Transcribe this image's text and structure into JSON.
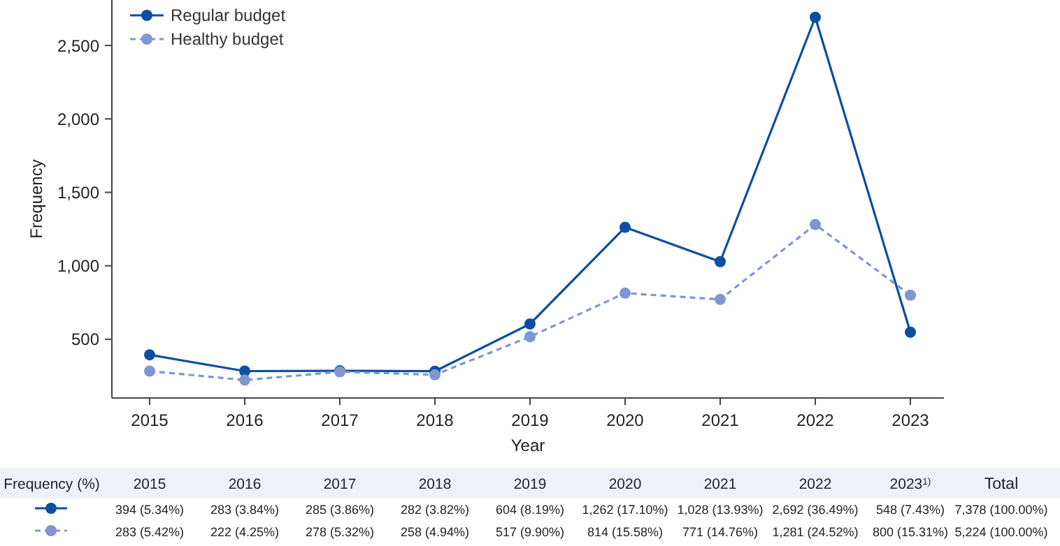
{
  "chart_data": {
    "type": "line",
    "xlabel": "Year",
    "ylabel": "Frequency",
    "categories": [
      "2015",
      "2016",
      "2017",
      "2018",
      "2019",
      "2020",
      "2021",
      "2022",
      "2023"
    ],
    "ylim": [
      100,
      2800
    ],
    "yticks": [
      {
        "value": 500,
        "label": "500"
      },
      {
        "value": 1000,
        "label": "1,000"
      },
      {
        "value": 1500,
        "label": "1,500"
      },
      {
        "value": 2000,
        "label": "2,000"
      },
      {
        "value": 2500,
        "label": "2,500"
      }
    ],
    "grid": false,
    "legend": "top left",
    "marker": "circle",
    "series": [
      {
        "name": "Regular budget",
        "color": "#0b4ea2",
        "line_style": "solid",
        "values": [
          394,
          283,
          285,
          282,
          604,
          1262,
          1028,
          2692,
          548
        ],
        "value_labels": [
          "394 (5.34%)",
          "283 (3.84%)",
          "285 (3.86%)",
          "282 (3.82%)",
          "604 (8.19%)",
          "1,262 (17.10%)",
          "1,028 (13.93%)",
          "2,692 (36.49%)",
          "548 (7.43%)"
        ]
      },
      {
        "name": "Healthy budget",
        "color": "#7f96d0",
        "line_style": "dashed",
        "values": [
          283,
          222,
          278,
          258,
          517,
          814,
          771,
          1281,
          800
        ],
        "value_labels": [
          "283 (5.42%)",
          "222 (4.25%)",
          "278 (5.32%)",
          "258 (4.94%)",
          "517 (9.90%)",
          "814 (15.58%)",
          "771 (14.76%)",
          "1,281 (24.52%)",
          "800 (15.31%)"
        ]
      }
    ],
    "annotations": [
      "Frequency (%)",
      "Total",
      "7,378 (100.00%)",
      "5,224 (100.00%)",
      "$^{1)}$"
    ]
  }
}
